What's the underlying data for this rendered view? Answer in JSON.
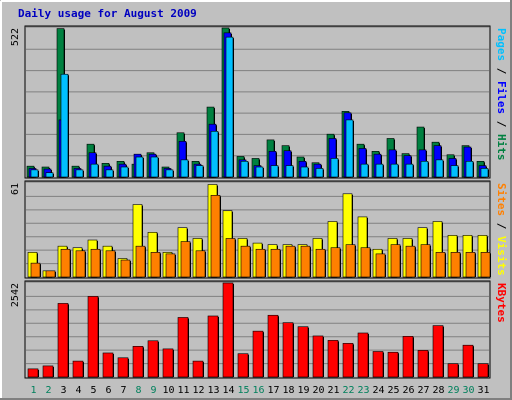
{
  "chart_data": {
    "type": "bar",
    "title": "Daily usage for August 2009",
    "categories": [
      "1",
      "2",
      "3",
      "4",
      "5",
      "6",
      "7",
      "8",
      "9",
      "10",
      "11",
      "12",
      "13",
      "14",
      "15",
      "16",
      "17",
      "18",
      "19",
      "20",
      "21",
      "22",
      "23",
      "24",
      "25",
      "26",
      "27",
      "28",
      "29",
      "30",
      "31"
    ],
    "weekend_days": [
      "1",
      "2",
      "8",
      "9",
      "15",
      "16",
      "22",
      "23",
      "29",
      "30"
    ],
    "colors": {
      "hits": "#008040",
      "files": "#0000ff",
      "pages": "#00c0ff",
      "visits": "#ffff00",
      "sites": "#ff8000",
      "kbytes": "#ff0000",
      "weekday": "#000000",
      "weekend": "#00805c",
      "title": "#0000c0"
    },
    "panels": [
      {
        "id": "hits",
        "ymax_label": "522",
        "ylim": [
          0,
          522
        ],
        "series": [
          {
            "name": "Hits",
            "color": "#008040",
            "values": [
              38,
              35,
              520,
              38,
              115,
              48,
              55,
              45,
              85,
              35,
              155,
              55,
              245,
              522,
              72,
              65,
              130,
              110,
              70,
              50,
              150,
              230,
              115,
              90,
              135,
              82,
              175,
              122,
              78,
              110,
              55
            ]
          },
          {
            "name": "Files",
            "color": "#0000ff",
            "values": [
              30,
              28,
              200,
              30,
              85,
              38,
              45,
              80,
              80,
              30,
              125,
              45,
              185,
              505,
              60,
              40,
              90,
              92,
              55,
              45,
              135,
              225,
              100,
              80,
              95,
              75,
              95,
              110,
              65,
              105,
              40
            ]
          },
          {
            "name": "Pages",
            "color": "#00c0ff",
            "values": [
              25,
              15,
              360,
              25,
              45,
              25,
              35,
              70,
              70,
              25,
              60,
              40,
              160,
              490,
              55,
              35,
              40,
              40,
              35,
              30,
              65,
              200,
              45,
              45,
              45,
              45,
              55,
              60,
              40,
              55,
              30
            ]
          }
        ]
      },
      {
        "id": "visits",
        "ymax_label": "61",
        "ylim": [
          0,
          61
        ],
        "series": [
          {
            "name": "Visits",
            "color": "#ffff00",
            "values": [
              16,
              4,
              20,
              19,
              24,
              20,
              12,
              47,
              29,
              16,
              32,
              25,
              60,
              43,
              25,
              22,
              21,
              21,
              21,
              25,
              36,
              54,
              39,
              18,
              25,
              25,
              32,
              36,
              27,
              27,
              27
            ]
          },
          {
            "name": "Sites",
            "color": "#ff8000",
            "values": [
              9,
              4,
              18,
              17,
              18,
              17,
              11,
              20,
              16,
              15,
              23,
              17,
              53,
              25,
              20,
              18,
              18,
              20,
              20,
              18,
              19,
              21,
              19,
              15,
              21,
              20,
              21,
              16,
              16,
              16,
              16
            ]
          }
        ]
      },
      {
        "id": "kbytes",
        "ymax_label": "2542",
        "ylim": [
          0,
          2542
        ],
        "series": [
          {
            "name": "KBytes",
            "color": "#ff0000",
            "values": [
              220,
              300,
              1990,
              430,
              2180,
              650,
              520,
              830,
              980,
              760,
              1610,
              430,
              1650,
              2542,
              630,
              1240,
              1670,
              1470,
              1360,
              1110,
              990,
              910,
              1190,
              690,
              670,
              1100,
              720,
              1390,
              360,
              860,
              360
            ]
          }
        ]
      }
    ],
    "right_labels": [
      {
        "panel": "hits",
        "parts": [
          {
            "text": "Pages",
            "color": "#00c0ff"
          },
          {
            "text": " / ",
            "color": "#000000"
          },
          {
            "text": "Files",
            "color": "#0000ff"
          },
          {
            "text": " / ",
            "color": "#000000"
          },
          {
            "text": "Hits",
            "color": "#008040"
          }
        ]
      },
      {
        "panel": "visits",
        "parts": [
          {
            "text": "Sites",
            "color": "#ff8000"
          },
          {
            "text": " / ",
            "color": "#000000"
          },
          {
            "text": "Visits",
            "color": "#ffff00"
          }
        ]
      },
      {
        "panel": "kbytes",
        "parts": [
          {
            "text": "KBytes",
            "color": "#ff0000"
          }
        ]
      }
    ]
  }
}
